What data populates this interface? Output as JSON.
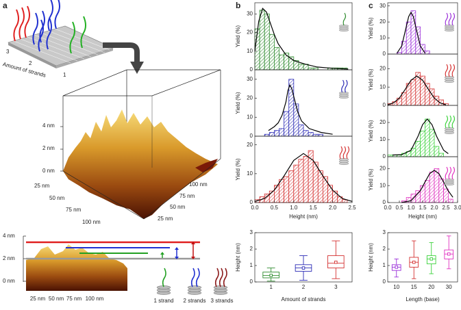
{
  "panel_labels": [
    "a",
    "b",
    "c"
  ],
  "schematic": {
    "labels": [
      "3",
      "2",
      "1"
    ],
    "axis_label": "Amount of strands"
  },
  "afm_3d": {
    "z_labels": [
      "4 nm",
      "2 nm",
      "0 nm"
    ],
    "x_labels": [
      "25 nm",
      "50 nm",
      "75 nm",
      "100 nm"
    ],
    "y_labels": [
      "100 nm",
      "75 nm",
      "50 nm",
      "25 nm"
    ]
  },
  "profile": {
    "z_labels": [
      "4 nm",
      "2 nm",
      "0 nm"
    ],
    "x_labels": [
      "25 nm",
      "50 nm",
      "75 nm",
      "100 nm"
    ],
    "legend": [
      "1 strand",
      "2 strands",
      "3 strands"
    ]
  },
  "chart_data": [
    {
      "type": "histogram",
      "ylabel": "Yield (%)",
      "color": "#2e8b2e",
      "bins": [
        0,
        0.125,
        0.25,
        0.375,
        0.5,
        0.625,
        0.75,
        0.875,
        1,
        1.125,
        1.25,
        1.375,
        1.5,
        1.625,
        1.75,
        1.875,
        2,
        2.125,
        2.25,
        2.375,
        2.5
      ],
      "values": [
        22,
        32,
        30,
        19,
        12,
        8,
        9,
        7,
        5,
        3,
        3,
        1,
        1,
        0,
        0,
        1,
        1,
        1,
        1,
        0
      ],
      "xlim": [
        0,
        2.5
      ],
      "ylim": [
        0,
        36
      ],
      "yticks": [
        0,
        10,
        20,
        30
      ],
      "fit": {
        "color": "#000000",
        "x": [
          0,
          0.1,
          0.2,
          0.3,
          0.4,
          0.5,
          0.6,
          0.8,
          1,
          1.3,
          1.6,
          2,
          2.4
        ],
        "y": [
          10,
          26,
          33,
          31,
          25,
          19,
          14,
          8,
          5,
          3,
          1.5,
          0.8,
          0.4
        ]
      }
    },
    {
      "type": "histogram",
      "ylabel": "Yield (%)",
      "color": "#2a2ab5",
      "bins": [
        0,
        0.125,
        0.25,
        0.375,
        0.5,
        0.625,
        0.75,
        0.875,
        1,
        1.125,
        1.25,
        1.375,
        1.5,
        1.625,
        1.75,
        1.875,
        2,
        2.125,
        2.25,
        2.375,
        2.5
      ],
      "values": [
        0,
        0,
        1,
        2,
        3,
        4,
        13,
        30,
        17,
        6,
        3,
        2,
        1,
        1,
        0,
        0,
        0,
        0,
        0,
        0
      ],
      "xlim": [
        0,
        2.5
      ],
      "ylim": [
        0,
        35
      ],
      "yticks": [
        0,
        10,
        20,
        30
      ],
      "fit": {
        "color": "#000000",
        "x": [
          0.35,
          0.5,
          0.6,
          0.7,
          0.8,
          0.85,
          0.9,
          0.95,
          1,
          1.1,
          1.2,
          1.4,
          1.7,
          2
        ],
        "y": [
          3,
          5,
          7,
          11,
          18,
          24,
          27,
          25,
          21,
          13,
          8,
          4,
          2,
          1
        ]
      }
    },
    {
      "type": "histogram",
      "ylabel": "Yield (%)",
      "xlabel": "Height (nm)",
      "color": "#d43030",
      "bins": [
        0,
        0.125,
        0.25,
        0.375,
        0.5,
        0.625,
        0.75,
        0.875,
        1,
        1.125,
        1.25,
        1.375,
        1.5,
        1.625,
        1.75,
        1.875,
        2,
        2.125,
        2.25,
        2.375,
        2.5
      ],
      "values": [
        1,
        2,
        3,
        4,
        6,
        8,
        9,
        11,
        13,
        15,
        16,
        18,
        14,
        11,
        9,
        6,
        4,
        2,
        1,
        0
      ],
      "xlim": [
        0,
        2.5
      ],
      "ylim": [
        0,
        23
      ],
      "yticks": [
        0,
        10,
        20
      ],
      "xticks": [
        {
          "value": 0,
          "label": "0.0"
        },
        0.5,
        {
          "value": 1,
          "label": "1.0"
        },
        1.5,
        {
          "value": 2,
          "label": "2.0"
        },
        2.5
      ],
      "fit": {
        "color": "#000000",
        "x": [
          0,
          0.25,
          0.5,
          0.75,
          1,
          1.25,
          1.5,
          1.75,
          2,
          2.25,
          2.5
        ],
        "y": [
          0.4,
          1.4,
          4.3,
          9.2,
          14.6,
          17,
          14.6,
          9.2,
          4.3,
          1.4,
          0.4
        ]
      }
    },
    {
      "type": "histogram",
      "ylabel": "Yield (%)",
      "color": "#9b30d9",
      "bins": [
        0,
        0.2,
        0.4,
        0.6,
        0.8,
        1,
        1.2,
        1.4,
        1.6,
        1.8,
        2,
        2.2,
        2.4,
        2.6,
        2.8,
        3
      ],
      "values": [
        0,
        0,
        1,
        8,
        20,
        27,
        17,
        6,
        2,
        0,
        0,
        0,
        0,
        0,
        0
      ],
      "xlim": [
        0,
        3
      ],
      "ylim": [
        0,
        32
      ],
      "yticks": [
        0,
        10,
        20,
        30
      ],
      "fit": {
        "color": "#000000",
        "x": [
          0.4,
          0.6,
          0.8,
          0.9,
          1,
          1.1,
          1.2,
          1.4,
          1.6
        ],
        "y": [
          0.6,
          5,
          17.2,
          23.4,
          26,
          23.4,
          17.2,
          5,
          0.6
        ]
      }
    },
    {
      "type": "histogram",
      "ylabel": "Yield (%)",
      "color": "#d43030",
      "bins": [
        0,
        0.2,
        0.4,
        0.6,
        0.8,
        1,
        1.2,
        1.4,
        1.6,
        1.8,
        2,
        2.2,
        2.4,
        2.6,
        2.8,
        3
      ],
      "values": [
        1,
        2,
        4,
        7,
        12,
        14,
        18,
        16,
        12,
        9,
        5,
        3,
        1,
        0,
        0
      ],
      "xlim": [
        0,
        3
      ],
      "ylim": [
        0,
        28
      ],
      "yticks": [
        0,
        10,
        20
      ],
      "fit": {
        "color": "#000000",
        "x": [
          0,
          0.25,
          0.5,
          0.75,
          1,
          1.25,
          1.5,
          1.75,
          2,
          2.25,
          2.5
        ],
        "y": [
          0.3,
          1.4,
          4,
          8.7,
          13.7,
          16,
          13.7,
          8.7,
          4,
          1.4,
          0.3
        ]
      }
    },
    {
      "type": "histogram",
      "ylabel": "Yield (%)",
      "color": "#3ad23a",
      "bins": [
        0,
        0.2,
        0.4,
        0.6,
        0.8,
        1,
        1.2,
        1.4,
        1.6,
        1.8,
        2,
        2.2,
        2.4,
        2.6,
        2.8,
        3
      ],
      "values": [
        1,
        1,
        1,
        2,
        3,
        5,
        9,
        15,
        22,
        16,
        6,
        2,
        0,
        0,
        0
      ],
      "xlim": [
        0,
        3
      ],
      "ylim": [
        0,
        30
      ],
      "yticks": [
        0,
        10,
        20
      ],
      "fit": {
        "color": "#000000",
        "x": [
          0.2,
          0.6,
          1,
          1.3,
          1.5,
          1.7,
          1.9,
          2.1,
          2.4,
          2.6
        ],
        "y": [
          1,
          1.2,
          3.8,
          11.9,
          18.8,
          22,
          18.8,
          11.9,
          3.8,
          1.8
        ]
      }
    },
    {
      "type": "histogram",
      "ylabel": "Yield (%)",
      "xlabel": "Height (nm)",
      "color": "#e030c0",
      "bins": [
        0,
        0.2,
        0.4,
        0.6,
        0.8,
        1,
        1.2,
        1.4,
        1.6,
        1.8,
        2,
        2.2,
        2.4,
        2.6,
        2.8,
        3
      ],
      "values": [
        0,
        0,
        0,
        1,
        3,
        5,
        7,
        10,
        13,
        18,
        20,
        14,
        8,
        2,
        0
      ],
      "xlim": [
        0,
        3
      ],
      "ylim": [
        0,
        27
      ],
      "yticks": [
        0,
        10,
        20
      ],
      "xticks": [
        {
          "value": 0,
          "label": "0.0"
        },
        0.5,
        {
          "value": 1,
          "label": "1.0"
        },
        1.5,
        {
          "value": 2,
          "label": "2.0"
        },
        2.5,
        {
          "value": 3,
          "label": "3.0"
        }
      ],
      "fit": {
        "color": "#000000",
        "x": [
          0.6,
          1,
          1.4,
          1.6,
          1.8,
          2,
          2.2,
          2.4,
          2.6,
          2.8
        ],
        "y": [
          0.1,
          1.1,
          6.9,
          12.1,
          17,
          19,
          17,
          12.1,
          6.9,
          3.1
        ]
      }
    },
    {
      "type": "box",
      "xlabel": "Amount of strands",
      "ylabel": "Height (nm)",
      "categories": [
        "1",
        "2",
        "3"
      ],
      "colors": [
        "#2e8b2e",
        "#2a2ab5",
        "#d43030"
      ],
      "min": [
        0.05,
        0.1,
        0.2
      ],
      "q1": [
        0.25,
        0.65,
        0.85
      ],
      "median": [
        0.4,
        0.85,
        1.15
      ],
      "q3": [
        0.6,
        1.05,
        1.6
      ],
      "max": [
        0.85,
        1.6,
        2.5
      ],
      "mean": [
        0.4,
        0.85,
        1.2
      ],
      "ylim": [
        0,
        3
      ],
      "yticks": [
        0,
        1,
        2,
        3
      ]
    },
    {
      "type": "box",
      "xlabel": "Length (base)",
      "ylabel": "Height (nm)",
      "categories": [
        "10",
        "15",
        "20",
        "30"
      ],
      "colors": [
        "#9b30d9",
        "#d43030",
        "#3ad23a",
        "#e030c0"
      ],
      "min": [
        0.3,
        0.2,
        0.5,
        0.8
      ],
      "q1": [
        0.7,
        0.9,
        1.1,
        1.4
      ],
      "median": [
        0.9,
        1.2,
        1.4,
        1.7
      ],
      "q3": [
        1.05,
        1.5,
        1.6,
        1.95
      ],
      "max": [
        1.4,
        2.5,
        2.4,
        2.8
      ],
      "mean": [
        0.9,
        1.2,
        1.4,
        1.7
      ],
      "ylim": [
        0,
        3
      ],
      "yticks": [
        0,
        1,
        2,
        3
      ]
    }
  ]
}
